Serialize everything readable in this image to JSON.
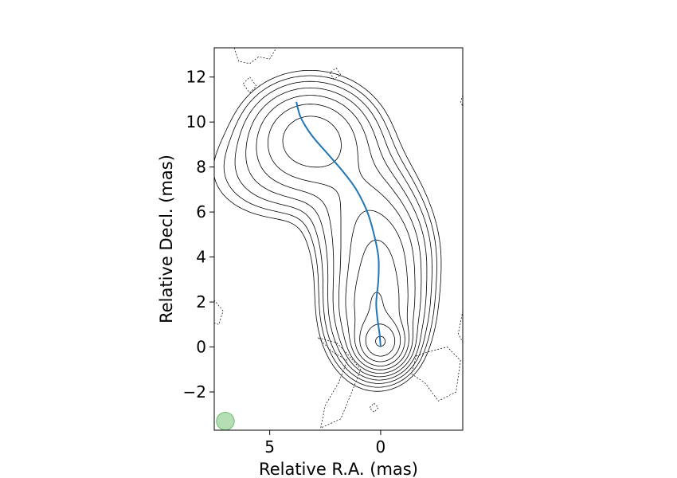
{
  "chart_data": {
    "type": "contour",
    "xlabel": "Relative R.A. (mas)",
    "ylabel": "Relative Decl. (mas)",
    "x_axis_inverted": true,
    "xlim": [
      7.5,
      -3.7
    ],
    "ylim": [
      -3.7,
      13.3
    ],
    "x_ticks": [
      {
        "value": 5,
        "label": "5"
      },
      {
        "value": 0,
        "label": "0"
      }
    ],
    "y_ticks": [
      {
        "value": -2,
        "label": "−2"
      },
      {
        "value": 0,
        "label": "0"
      },
      {
        "value": 2,
        "label": "2"
      },
      {
        "value": 4,
        "label": "4"
      },
      {
        "value": 6,
        "label": "6"
      },
      {
        "value": 8,
        "label": "8"
      },
      {
        "value": 10,
        "label": "10"
      },
      {
        "value": 12,
        "label": "12"
      }
    ],
    "grid": false,
    "legend": "none",
    "ridge_line": {
      "color": "#1f77b4",
      "x": [
        0.0,
        0.05,
        0.15,
        0.2,
        0.1,
        0.1,
        0.3,
        0.6,
        1.1,
        1.7,
        2.4,
        3.1,
        3.6,
        3.8
      ],
      "y": [
        0.0,
        0.6,
        1.3,
        2.0,
        3.0,
        4.0,
        5.0,
        6.0,
        7.0,
        7.8,
        8.6,
        9.4,
        10.2,
        10.9
      ]
    },
    "beam": {
      "x": 7.0,
      "y": -3.3,
      "diameter": 0.8,
      "color": "#2ca02c"
    },
    "contours": {
      "positive_color": "#000000",
      "negative_color": "#000000",
      "negative_style": "dashed",
      "components": [
        {
          "name": "core",
          "x": 0.0,
          "y": 0.2,
          "levels": 12
        },
        {
          "name": "inner-jet",
          "x": 0.2,
          "y": 2.0,
          "levels": 9
        },
        {
          "name": "jet-knot",
          "x": 0.0,
          "y": 4.3,
          "levels": 7
        },
        {
          "name": "outer-knot",
          "x": 3.2,
          "y": 9.2,
          "levels": 9
        }
      ]
    }
  }
}
